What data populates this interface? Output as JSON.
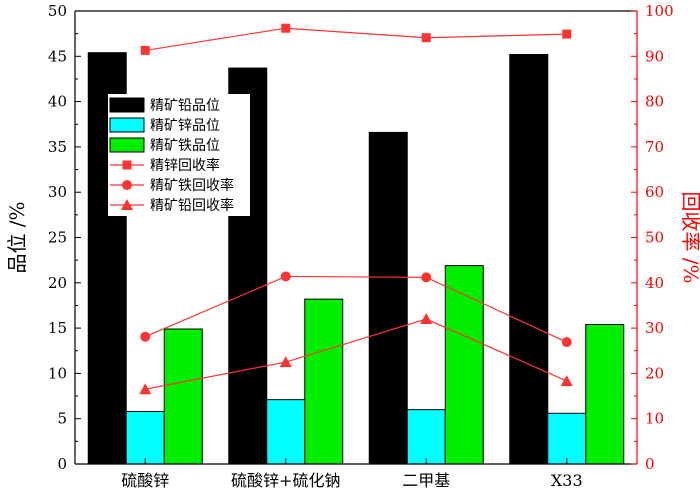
{
  "colors": {
    "lead_grade": "#000000",
    "zinc_grade": "#00ffff",
    "iron_grade": "#00ee00",
    "recovery": "#ff3333",
    "right_axis": "#ff0000"
  },
  "chart_data": {
    "type": "bar",
    "categories": [
      "硫酸锌",
      "硫酸锌+硫化钠",
      "二甲基",
      "X33"
    ],
    "ylabel": "品位 /%",
    "y2label": "回收率 /%",
    "ylim": [
      0,
      50
    ],
    "y2lim": [
      0,
      100
    ],
    "yticks": [
      0,
      5,
      10,
      15,
      20,
      25,
      30,
      35,
      40,
      45,
      50
    ],
    "y2ticks": [
      0,
      10,
      20,
      30,
      40,
      50,
      60,
      70,
      80,
      90,
      100
    ],
    "grid": false,
    "legend_position": "upper-left",
    "bar_series": [
      {
        "name": "精矿铅品位",
        "values": [
          45.4,
          43.7,
          36.6,
          45.2
        ]
      },
      {
        "name": "精矿锌品位",
        "values": [
          5.8,
          7.1,
          6.0,
          5.6
        ]
      },
      {
        "name": "精矿铁品位",
        "values": [
          14.9,
          18.2,
          21.9,
          15.4
        ]
      }
    ],
    "line_series": [
      {
        "name": "精锌回收率",
        "marker": "square",
        "values": [
          91.3,
          96.2,
          94.1,
          94.9
        ]
      },
      {
        "name": "精矿铁回收率",
        "marker": "circle",
        "values": [
          28.1,
          41.4,
          41.2,
          26.9
        ]
      },
      {
        "name": "精矿铅回收率",
        "marker": "triangle",
        "values": [
          16.5,
          22.5,
          32.0,
          18.3
        ]
      }
    ]
  }
}
